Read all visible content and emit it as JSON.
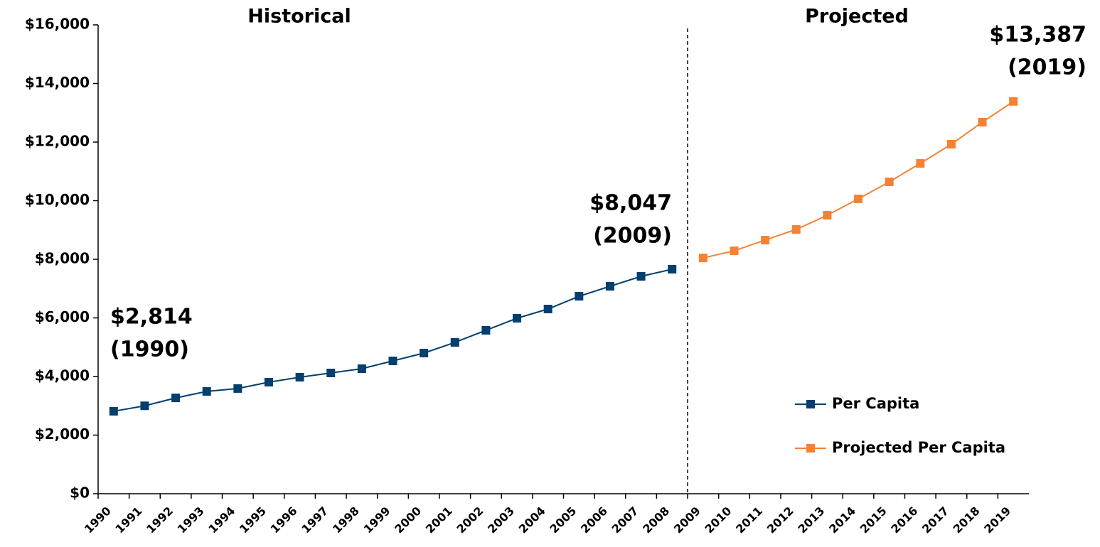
{
  "chart_data": {
    "type": "line",
    "categories": [
      "1990",
      "1991",
      "1992",
      "1993",
      "1994",
      "1995",
      "1996",
      "1997",
      "1998",
      "1999",
      "2000",
      "2001",
      "2002",
      "2003",
      "2004",
      "2005",
      "2006",
      "2007",
      "2008",
      "2009",
      "2010",
      "2011",
      "2012",
      "2013",
      "2014",
      "2015",
      "2016",
      "2017",
      "2018",
      "2019"
    ],
    "series": [
      {
        "name": "Per Capita",
        "color": "#003f6e",
        "values": [
          2814,
          3000,
          3270,
          3490,
          3590,
          3806,
          3976,
          4121,
          4267,
          4533,
          4800,
          5164,
          5576,
          5988,
          6303,
          6739,
          7079,
          7418,
          7661,
          null,
          null,
          null,
          null,
          null,
          null,
          null,
          null,
          null,
          null,
          null
        ]
      },
      {
        "name": "Projected Per Capita",
        "color": "#f58232",
        "values": [
          null,
          null,
          null,
          null,
          null,
          null,
          null,
          null,
          null,
          null,
          null,
          null,
          null,
          null,
          null,
          null,
          null,
          null,
          null,
          8047,
          8290,
          8655,
          9018,
          9503,
          10061,
          10642,
          11273,
          11927,
          12679,
          13387
        ]
      }
    ],
    "ylim": [
      0,
      16000
    ],
    "yticks": [
      {
        "value": 0,
        "label": "$0"
      },
      {
        "value": 2000,
        "label": "$2,000"
      },
      {
        "value": 4000,
        "label": "$4,000"
      },
      {
        "value": 6000,
        "label": "$6,000"
      },
      {
        "value": 8000,
        "label": "$8,000"
      },
      {
        "value": 10000,
        "label": "$10,000"
      },
      {
        "value": 12000,
        "label": "$12,000"
      },
      {
        "value": 14000,
        "label": "$14,000"
      },
      {
        "value": 16000,
        "label": "$16,000"
      }
    ],
    "section_labels": [
      "Historical",
      "Projected"
    ],
    "annotations": [
      {
        "lines": [
          "$2,814",
          "(1990)"
        ]
      },
      {
        "lines": [
          "$8,047",
          "(2009)"
        ]
      },
      {
        "lines": [
          "$13,387",
          "(2019)"
        ]
      }
    ],
    "legend": "lower right",
    "grid": false
  }
}
